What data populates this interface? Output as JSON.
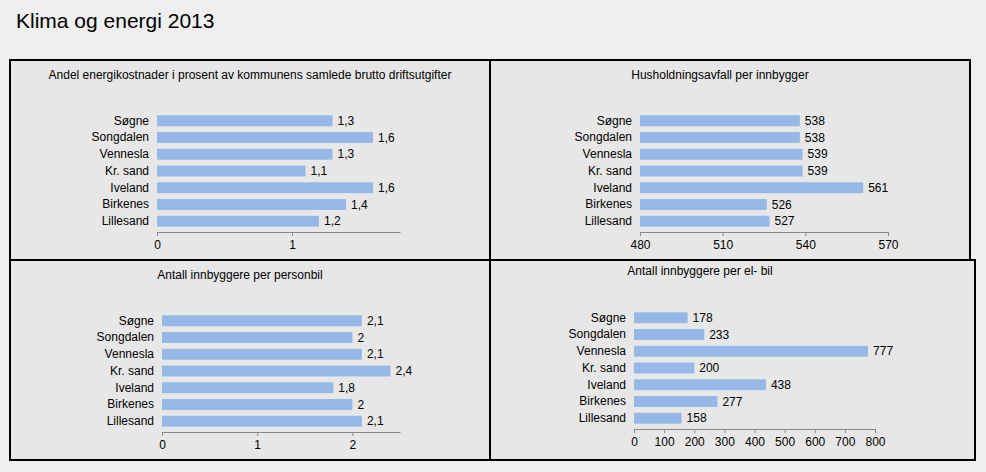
{
  "title": "Klima og energi 2013",
  "chart_data": [
    {
      "type": "bar",
      "orientation": "horizontal",
      "title": "Andel energikostnader i prosent av kommunens samlede brutto driftsutgifter",
      "categories": [
        "Søgne",
        "Songdalen",
        "Vennesla",
        "Kr. sand",
        "Iveland",
        "Birkenes",
        "Lillesand"
      ],
      "values": [
        1.3,
        1.6,
        1.3,
        1.1,
        1.6,
        1.4,
        1.2
      ],
      "value_labels": [
        "1,3",
        "1,6",
        "1,3",
        "1,1",
        "1,6",
        "1,4",
        "1,2"
      ],
      "color": "#95b8e6",
      "xlim": [
        0,
        1.8
      ],
      "xticks": [
        0,
        1
      ],
      "grid": false,
      "data_labels": true
    },
    {
      "type": "bar",
      "orientation": "horizontal",
      "title": "Husholdningsavfall per innbygger",
      "categories": [
        "Søgne",
        "Songdalen",
        "Vennesla",
        "Kr. sand",
        "Iveland",
        "Birkenes",
        "Lillesand"
      ],
      "values": [
        538,
        538,
        539,
        539,
        561,
        526,
        527
      ],
      "color": "#95b8e6",
      "xlim": [
        480,
        570
      ],
      "xticks": [
        480,
        510,
        540,
        570
      ],
      "grid": false,
      "data_labels": true
    },
    {
      "type": "bar",
      "orientation": "horizontal",
      "title": "Antall innbyggere per personbil",
      "categories": [
        "Søgne",
        "Songdalen",
        "Vennesla",
        "Kr. sand",
        "Iveland",
        "Birkenes",
        "Lillesand"
      ],
      "values": [
        2.1,
        2,
        2.1,
        2.4,
        1.8,
        2,
        2.1
      ],
      "value_labels": [
        "2,1",
        "2",
        "2,1",
        "2,4",
        "1,8",
        "2",
        "2,1"
      ],
      "color": "#95b8e6",
      "xlim": [
        0,
        2.5
      ],
      "xticks": [
        0,
        1,
        2
      ],
      "grid": false,
      "data_labels": true
    },
    {
      "type": "bar",
      "orientation": "horizontal",
      "title": "Antall innbyggere per el- bil",
      "categories": [
        "Søgne",
        "Songdalen",
        "Vennesla",
        "Kr. sand",
        "Iveland",
        "Birkenes",
        "Lillesand"
      ],
      "values": [
        178,
        233,
        777,
        200,
        438,
        277,
        158
      ],
      "color": "#95b8e6",
      "xlim": [
        0,
        800
      ],
      "xticks": [
        0,
        100,
        200,
        300,
        400,
        500,
        600,
        700,
        800
      ],
      "grid": false,
      "data_labels": true
    }
  ]
}
